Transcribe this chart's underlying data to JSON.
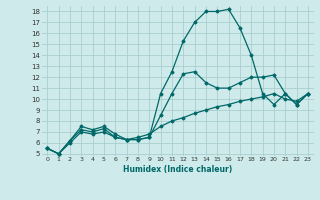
{
  "xlabel": "Humidex (Indice chaleur)",
  "bg_color": "#ceeaea",
  "grid_color": "#aacece",
  "line_color": "#006868",
  "xlim": [
    -0.5,
    23.5
  ],
  "ylim": [
    4.8,
    18.5
  ],
  "xticks": [
    0,
    1,
    2,
    3,
    4,
    5,
    6,
    7,
    8,
    9,
    10,
    11,
    12,
    13,
    14,
    15,
    16,
    17,
    18,
    19,
    20,
    21,
    22,
    23
  ],
  "yticks": [
    5,
    6,
    7,
    8,
    9,
    10,
    11,
    12,
    13,
    14,
    15,
    16,
    17,
    18
  ],
  "series": [
    {
      "x": [
        0,
        1,
        2,
        3,
        4,
        5,
        6,
        7,
        8,
        9,
        10,
        11,
        12,
        13,
        14,
        15,
        16,
        17,
        18,
        19,
        20,
        21,
        22,
        23
      ],
      "y": [
        5.5,
        5.0,
        6.2,
        7.2,
        7.0,
        7.3,
        6.5,
        6.3,
        6.3,
        6.5,
        10.5,
        12.5,
        15.3,
        17.0,
        18.0,
        18.0,
        18.2,
        16.5,
        14.0,
        10.5,
        9.5,
        10.5,
        9.5,
        10.5
      ]
    },
    {
      "x": [
        0,
        1,
        2,
        3,
        4,
        5,
        6,
        7,
        8,
        9,
        10,
        11,
        12,
        13,
        14,
        15,
        16,
        17,
        18,
        19,
        20,
        21,
        22,
        23
      ],
      "y": [
        5.5,
        5.0,
        6.2,
        7.5,
        7.2,
        7.5,
        6.8,
        6.3,
        6.3,
        6.5,
        8.5,
        10.5,
        12.3,
        12.5,
        11.5,
        11.0,
        11.0,
        11.5,
        12.0,
        12.0,
        12.2,
        10.5,
        9.5,
        10.5
      ]
    },
    {
      "x": [
        0,
        1,
        2,
        3,
        4,
        5,
        6,
        7,
        8,
        9,
        10,
        11,
        12,
        13,
        14,
        15,
        16,
        17,
        18,
        19,
        20,
        21,
        22,
        23
      ],
      "y": [
        5.5,
        5.0,
        6.0,
        7.0,
        6.8,
        7.0,
        6.5,
        6.3,
        6.5,
        6.8,
        7.5,
        8.0,
        8.3,
        8.7,
        9.0,
        9.3,
        9.5,
        9.8,
        10.0,
        10.2,
        10.5,
        10.0,
        9.8,
        10.5
      ]
    }
  ]
}
